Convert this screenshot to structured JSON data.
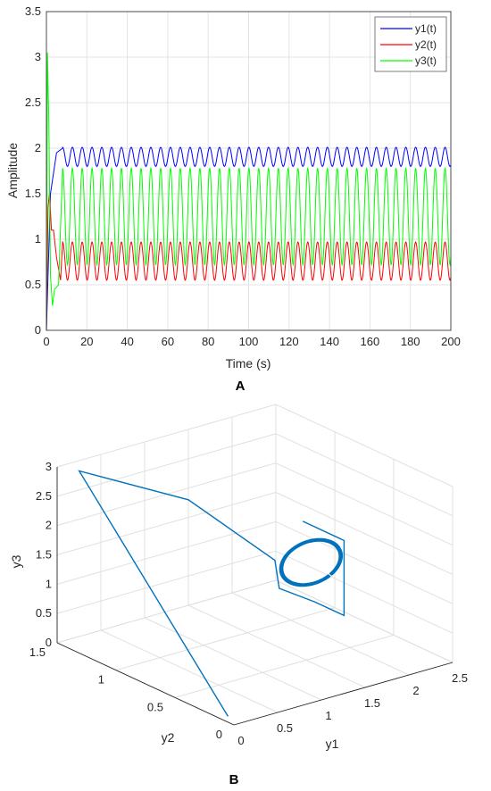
{
  "chart_data": [
    {
      "type": "line",
      "panel_label": "A",
      "xlabel": "Time (s)",
      "ylabel": "Amplitude",
      "xlim": [
        0,
        200
      ],
      "ylim": [
        0,
        3.5
      ],
      "xticks": [
        0,
        20,
        40,
        60,
        80,
        100,
        120,
        140,
        160,
        180,
        200
      ],
      "yticks": [
        0,
        0.5,
        1,
        1.5,
        2,
        2.5,
        3,
        3.5
      ],
      "grid": true,
      "legend_position": "top-right",
      "series": [
        {
          "name": "y1(t)",
          "color": "#0000ff",
          "initial": [
            [
              0,
              0.0
            ],
            [
              2,
              1.5
            ],
            [
              5,
              1.95
            ],
            [
              8,
              2.0
            ]
          ],
          "oscillation": {
            "from": 8,
            "to": 200,
            "period": 4.85,
            "min": 1.8,
            "max": 2.01
          }
        },
        {
          "name": "y2(t)",
          "color": "#ff0000",
          "initial": [
            [
              0,
              0.05
            ],
            [
              0.8,
              1.35
            ],
            [
              1.5,
              1.5
            ],
            [
              2.5,
              1.1
            ],
            [
              3.5,
              1.1
            ],
            [
              5,
              0.8
            ],
            [
              7,
              0.55
            ],
            [
              8,
              0.97
            ]
          ],
          "oscillation": {
            "from": 8,
            "to": 200,
            "period": 4.85,
            "min": 0.55,
            "max": 0.97
          }
        },
        {
          "name": "y3(t)",
          "color": "#00ff00",
          "initial": [
            [
              0,
              0.1
            ],
            [
              0.5,
              3.05
            ],
            [
              1.2,
              2.3
            ],
            [
              2,
              0.6
            ],
            [
              3,
              0.27
            ],
            [
              4,
              0.45
            ],
            [
              6,
              0.5
            ],
            [
              8,
              1.78
            ]
          ],
          "oscillation": {
            "from": 8,
            "to": 200,
            "period": 4.85,
            "min": 0.72,
            "max": 1.78
          }
        }
      ]
    },
    {
      "type": "line",
      "panel_label": "B",
      "xlabel": "y1",
      "ylabel": "y2",
      "zlabel": "y3",
      "xlim": [
        0,
        2.5
      ],
      "ylim": [
        0,
        1.5
      ],
      "zlim": [
        0,
        3
      ],
      "xticks": [
        0,
        0.5,
        1,
        1.5,
        2,
        2.5
      ],
      "yticks": [
        0,
        0.5,
        1,
        1.5
      ],
      "zticks": [
        0,
        0.5,
        1,
        1.5,
        2,
        2.5,
        3
      ],
      "grid": true,
      "color": "#0072bd",
      "trajectory": [
        [
          0,
          0.05,
          0.1
        ],
        [
          0.05,
          1.35,
          3.05
        ],
        [
          1.5,
          1.5,
          1.8
        ],
        [
          1.95,
          1.1,
          0.95
        ],
        [
          2.0,
          1.1,
          0.45
        ],
        [
          2.0,
          0.8,
          0.5
        ],
        [
          2.0,
          0.55,
          0.5
        ],
        [
          2.0,
          0.55,
          1.78
        ],
        [
          2.0,
          0.9,
          1.78
        ]
      ],
      "limit_cycle": {
        "y1_range": [
          1.8,
          2.01
        ],
        "y2_range": [
          0.55,
          0.97
        ],
        "y3_range": [
          0.72,
          1.78
        ]
      }
    }
  ]
}
